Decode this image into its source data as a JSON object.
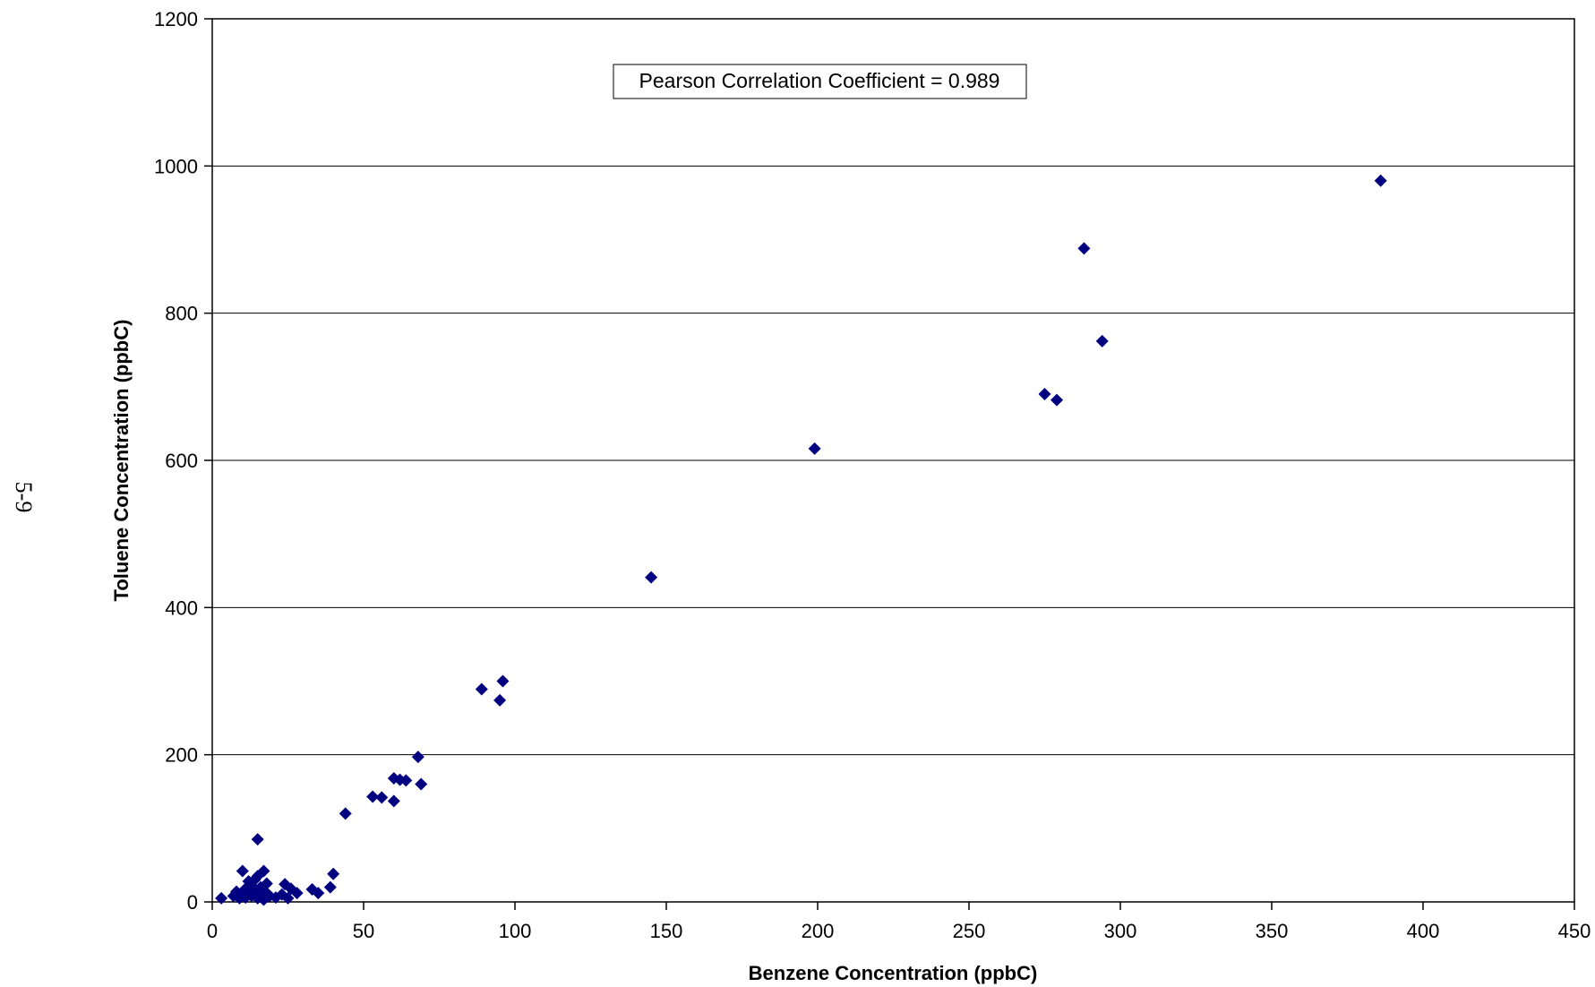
{
  "page": {
    "page_number": "5-9"
  },
  "chart_data": {
    "type": "scatter",
    "title": "",
    "xlabel": "Benzene Concentration (ppbC)",
    "ylabel": "Toluene Concentration (ppbC)",
    "xlim": [
      0,
      450
    ],
    "ylim": [
      0,
      1200
    ],
    "xticks": [
      0,
      50,
      100,
      150,
      200,
      250,
      300,
      350,
      400,
      450
    ],
    "yticks": [
      0,
      200,
      400,
      600,
      800,
      1000,
      1200
    ],
    "grid": {
      "horizontal": true,
      "vertical": false
    },
    "legend": "none",
    "marker": {
      "shape": "diamond",
      "color": "#000080"
    },
    "annotation": "Pearson Correlation Coefficient = 0.989",
    "points": [
      {
        "x": 3,
        "y": 5
      },
      {
        "x": 7,
        "y": 8
      },
      {
        "x": 8,
        "y": 14
      },
      {
        "x": 9,
        "y": 5
      },
      {
        "x": 10,
        "y": 42
      },
      {
        "x": 10,
        "y": 10
      },
      {
        "x": 11,
        "y": 18
      },
      {
        "x": 11,
        "y": 6
      },
      {
        "x": 12,
        "y": 28
      },
      {
        "x": 12,
        "y": 12
      },
      {
        "x": 13,
        "y": 8
      },
      {
        "x": 13,
        "y": 22
      },
      {
        "x": 14,
        "y": 30
      },
      {
        "x": 14,
        "y": 15
      },
      {
        "x": 15,
        "y": 85
      },
      {
        "x": 15,
        "y": 5
      },
      {
        "x": 15,
        "y": 35
      },
      {
        "x": 16,
        "y": 20
      },
      {
        "x": 16,
        "y": 10
      },
      {
        "x": 17,
        "y": 42
      },
      {
        "x": 17,
        "y": 3
      },
      {
        "x": 18,
        "y": 25
      },
      {
        "x": 18,
        "y": 12
      },
      {
        "x": 19,
        "y": 8
      },
      {
        "x": 21,
        "y": 6
      },
      {
        "x": 23,
        "y": 10
      },
      {
        "x": 24,
        "y": 24
      },
      {
        "x": 25,
        "y": 5
      },
      {
        "x": 26,
        "y": 18
      },
      {
        "x": 28,
        "y": 12
      },
      {
        "x": 33,
        "y": 17
      },
      {
        "x": 35,
        "y": 12
      },
      {
        "x": 39,
        "y": 20
      },
      {
        "x": 40,
        "y": 38
      },
      {
        "x": 44,
        "y": 120
      },
      {
        "x": 53,
        "y": 143
      },
      {
        "x": 56,
        "y": 142
      },
      {
        "x": 60,
        "y": 168
      },
      {
        "x": 60,
        "y": 137
      },
      {
        "x": 62,
        "y": 166
      },
      {
        "x": 64,
        "y": 165
      },
      {
        "x": 68,
        "y": 197
      },
      {
        "x": 69,
        "y": 160
      },
      {
        "x": 89,
        "y": 289
      },
      {
        "x": 95,
        "y": 274
      },
      {
        "x": 96,
        "y": 300
      },
      {
        "x": 145,
        "y": 441
      },
      {
        "x": 199,
        "y": 616
      },
      {
        "x": 275,
        "y": 690
      },
      {
        "x": 279,
        "y": 682
      },
      {
        "x": 288,
        "y": 888
      },
      {
        "x": 294,
        "y": 762
      },
      {
        "x": 386,
        "y": 980
      }
    ]
  }
}
